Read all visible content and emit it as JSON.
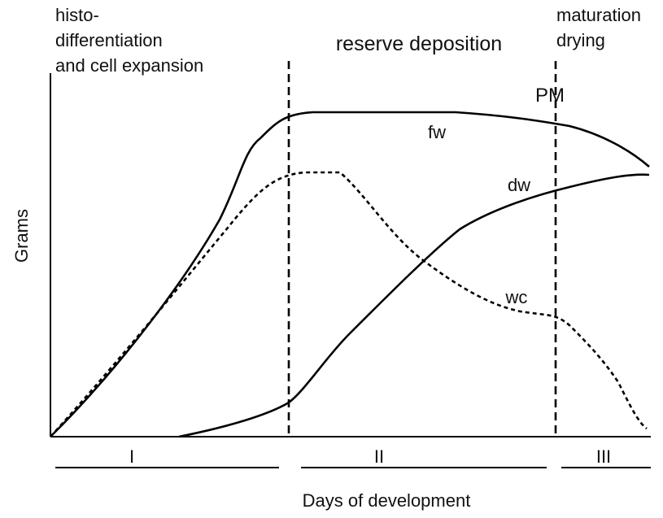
{
  "phases": {
    "early": [
      "histo-",
      "differentiation",
      "and cell expansion"
    ],
    "middle": "reserve deposition",
    "late": [
      "maturation",
      "drying"
    ]
  },
  "marker": "PM",
  "curve_labels": {
    "fw": "fw",
    "dw": "dw",
    "wc": "wc"
  },
  "y_label": "Grams",
  "stages": [
    "I",
    "II",
    "III"
  ],
  "x_label": "Days of development"
}
